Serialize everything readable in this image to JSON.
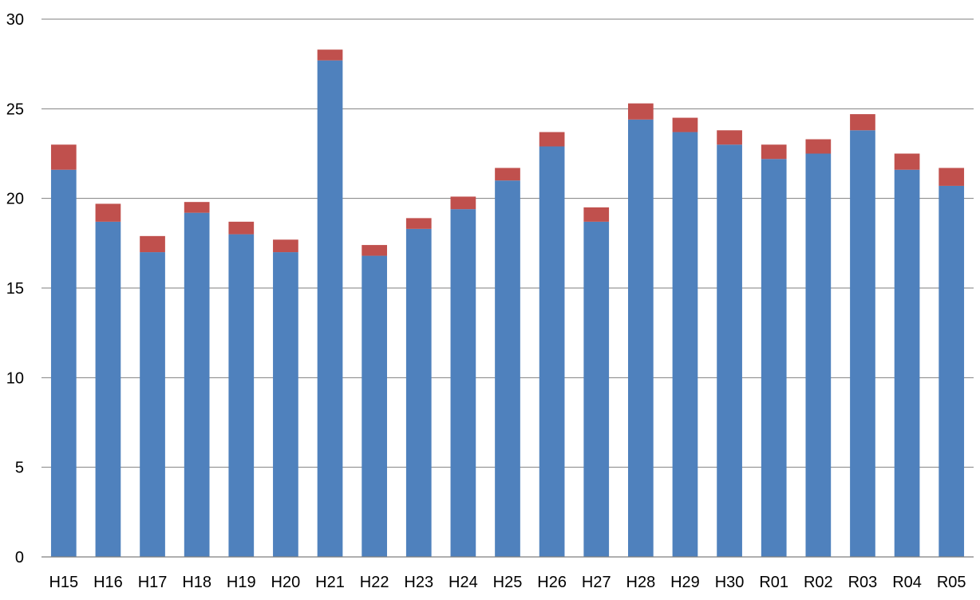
{
  "chart_data": {
    "type": "bar",
    "stacked": true,
    "title": "",
    "xlabel": "",
    "ylabel": "",
    "ylim": [
      0,
      30
    ],
    "yticks": [
      0,
      5,
      10,
      15,
      20,
      25,
      30
    ],
    "grid": true,
    "legend": "none",
    "categories": [
      "H15",
      "H16",
      "H17",
      "H18",
      "H19",
      "H20",
      "H21",
      "H22",
      "H23",
      "H24",
      "H25",
      "H26",
      "H27",
      "H28",
      "H29",
      "H30",
      "R01",
      "R02",
      "R03",
      "R04",
      "R05"
    ],
    "series": [
      {
        "color": "#4f81bd",
        "values": [
          21.6,
          18.7,
          17.0,
          19.2,
          18.0,
          17.0,
          27.7,
          16.8,
          18.3,
          19.4,
          21.0,
          22.9,
          18.7,
          24.4,
          23.7,
          23.0,
          22.2,
          22.5,
          23.8,
          21.6,
          20.7
        ]
      },
      {
        "color": "#c0504d",
        "values": [
          1.4,
          1.0,
          0.9,
          0.6,
          0.7,
          0.7,
          0.6,
          0.6,
          0.6,
          0.7,
          0.7,
          0.8,
          0.8,
          0.9,
          0.8,
          0.8,
          0.8,
          0.8,
          0.9,
          0.9,
          1.0
        ]
      }
    ]
  }
}
